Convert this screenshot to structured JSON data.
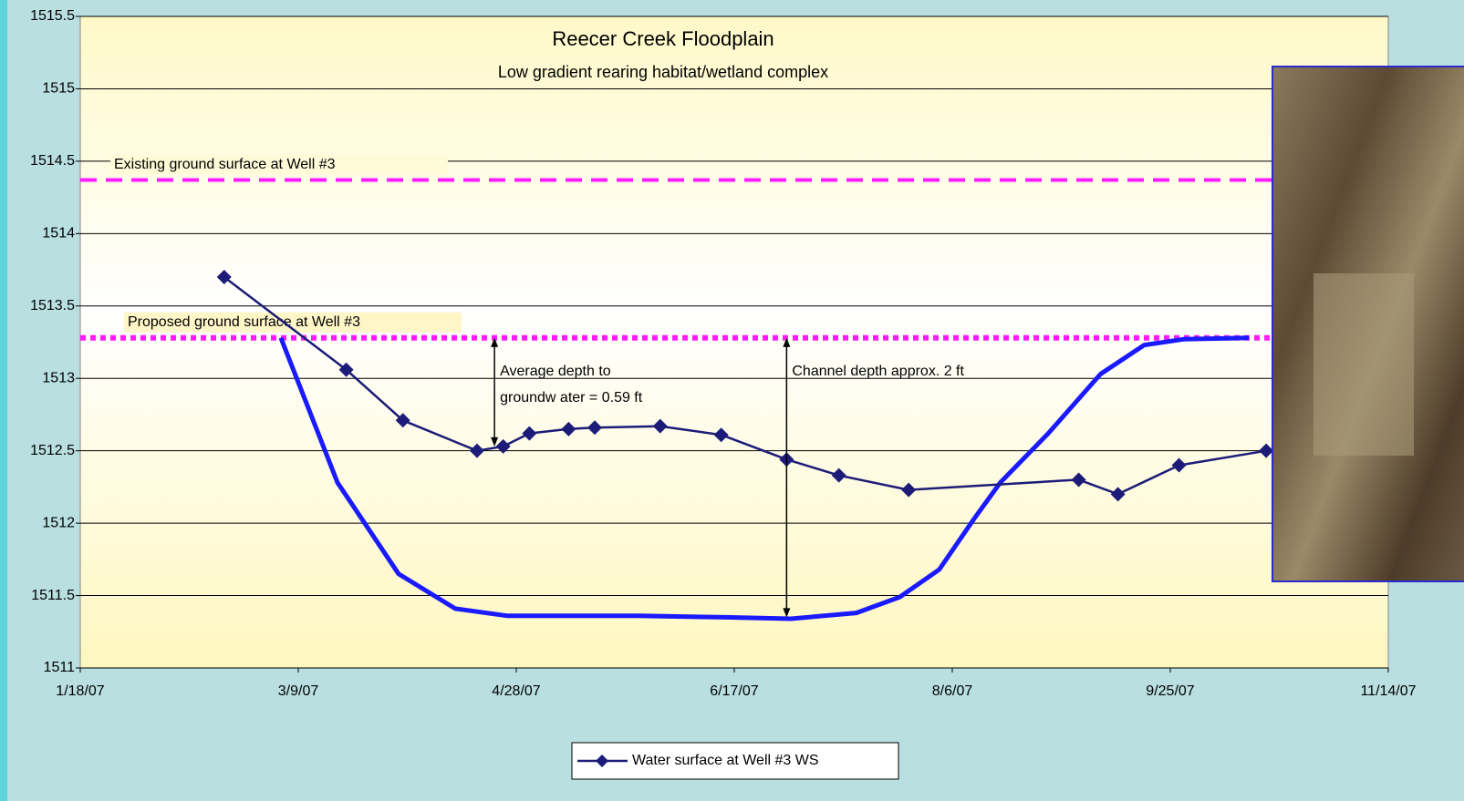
{
  "chart_data": {
    "type": "line",
    "title": "Reecer Creek Floodplain",
    "subtitle": "Low gradient rearing habitat/wetland complex",
    "xlim": [
      "2007-01-18",
      "2007-11-14"
    ],
    "xticks": [
      {
        "value": "2007-01-18",
        "label": "1/18/07"
      },
      {
        "value": "2007-03-09",
        "label": "3/9/07"
      },
      {
        "value": "2007-04-28",
        "label": "4/28/07"
      },
      {
        "value": "2007-06-17",
        "label": "6/17/07"
      },
      {
        "value": "2007-08-06",
        "label": "8/6/07"
      },
      {
        "value": "2007-09-25",
        "label": "9/25/07"
      },
      {
        "value": "2007-11-14",
        "label": "11/14/07"
      }
    ],
    "ylim": [
      1511,
      1515.5
    ],
    "yticks": [
      1511,
      1511.5,
      1512,
      1512.5,
      1513,
      1513.5,
      1514,
      1514.5,
      1515,
      1515.5
    ],
    "grid": true,
    "legend": "bottom",
    "series": [
      {
        "name": "Water surface at Well #3 WS",
        "color": "#1c1c78",
        "x": [
          "2007-02-20",
          "2007-03-20",
          "2007-04-02",
          "2007-04-19",
          "2007-04-25",
          "2007-05-01",
          "2007-05-10",
          "2007-05-16",
          "2007-05-31",
          "2007-06-14",
          "2007-06-29",
          "2007-07-11",
          "2007-07-27",
          "2007-09-04",
          "2007-09-13",
          "2007-09-27",
          "2007-10-17"
        ],
        "values": [
          1513.7,
          1513.06,
          1512.71,
          1512.5,
          1512.53,
          1512.62,
          1512.65,
          1512.66,
          1512.67,
          1512.61,
          1512.44,
          1512.33,
          1512.23,
          1512.3,
          1512.2,
          1512.4,
          1512.5
        ]
      }
    ],
    "channel_profile": {
      "color": "#1a1aff",
      "x": [
        "2007-03-05",
        "2007-03-18",
        "2007-04-01",
        "2007-04-14",
        "2007-04-26",
        "2007-05-26",
        "2007-06-15",
        "2007-06-30",
        "2007-07-15",
        "2007-07-25",
        "2007-08-03",
        "2007-08-11",
        "2007-08-17",
        "2007-08-28",
        "2007-09-09",
        "2007-09-19",
        "2007-09-28",
        "2007-10-13"
      ],
      "values": [
        1513.28,
        1512.28,
        1511.65,
        1511.41,
        1511.36,
        1511.36,
        1511.35,
        1511.34,
        1511.38,
        1511.49,
        1511.68,
        1512.03,
        1512.28,
        1512.62,
        1513.03,
        1513.23,
        1513.27,
        1513.28
      ]
    },
    "reference_lines": [
      {
        "label": "Existing ground surface at Well #3",
        "value": 1514.37,
        "color": "#ff1aff",
        "style": "dashed"
      },
      {
        "label": "Proposed ground surface at Well #3",
        "value": 1513.28,
        "color": "#ff1aff",
        "style": "dotted"
      }
    ],
    "annotations": [
      {
        "lines": [
          "Average depth to",
          "groundw ater = 0.59 ft"
        ],
        "x": "2007-04-23",
        "y": 1513.28,
        "y_end": 1512.53
      },
      {
        "lines": [
          "Channel depth  approx. 2 ft"
        ],
        "x": "2007-06-29",
        "y": 1513.28,
        "y_end": 1511.35
      }
    ]
  }
}
